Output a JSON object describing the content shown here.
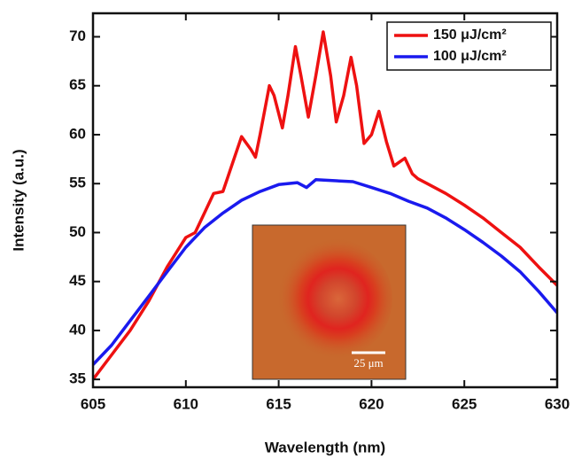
{
  "chart_data": {
    "type": "line",
    "x_label": "Wavelength (nm)",
    "y_label": "Intensity (a.u.)",
    "xlim": [
      605,
      630
    ],
    "xticks": [
      605,
      610,
      615,
      620,
      625,
      630
    ],
    "ylim": [
      34.2,
      72.4
    ],
    "yticks": [
      35,
      40,
      45,
      50,
      55,
      60,
      65,
      70
    ],
    "legend": "upper right",
    "inset_label": "25 μm",
    "series": [
      {
        "name": "150 μJ/cm²",
        "color": "#ee1111",
        "x": [
          605,
          606,
          607,
          608,
          609,
          609.5,
          610,
          610.5,
          611,
          611.5,
          612,
          612.5,
          613,
          613.5,
          613.75,
          614,
          614.5,
          614.75,
          615.2,
          615.5,
          615.9,
          616.2,
          616.6,
          617,
          617.4,
          617.8,
          618.1,
          618.5,
          618.9,
          619.2,
          619.6,
          620,
          620.4,
          620.8,
          621.2,
          621.5,
          621.8,
          622.2,
          622.5,
          623,
          624,
          625,
          626,
          627,
          628,
          629,
          630
        ],
        "values": [
          35,
          37.5,
          40,
          43,
          46.5,
          48,
          49.5,
          50,
          52,
          54,
          54.2,
          57,
          59.8,
          58.5,
          57.7,
          60,
          65,
          64,
          60.7,
          64,
          69,
          66,
          61.8,
          66,
          70.5,
          66,
          61.3,
          64,
          67.9,
          65,
          59.1,
          60,
          62.4,
          59.3,
          56.8,
          57.2,
          57.6,
          56,
          55.5,
          55,
          54,
          52.8,
          51.5,
          50,
          48.5,
          46.5,
          44.6
        ]
      },
      {
        "name": "100 μJ/cm²",
        "color": "#1a1aee",
        "x": [
          605,
          606,
          607,
          608,
          609,
          610,
          611,
          612,
          613,
          614,
          615,
          616,
          616.5,
          617,
          618,
          619,
          620,
          621,
          622,
          623,
          624,
          625,
          626,
          627,
          628,
          629,
          630
        ],
        "values": [
          36.5,
          38.5,
          41,
          43.5,
          46,
          48.5,
          50.5,
          52,
          53.3,
          54.2,
          54.9,
          55.1,
          54.6,
          55.4,
          55.3,
          55.2,
          54.6,
          54,
          53.2,
          52.5,
          51.5,
          50.3,
          49,
          47.6,
          46,
          44,
          41.8
        ]
      }
    ]
  }
}
